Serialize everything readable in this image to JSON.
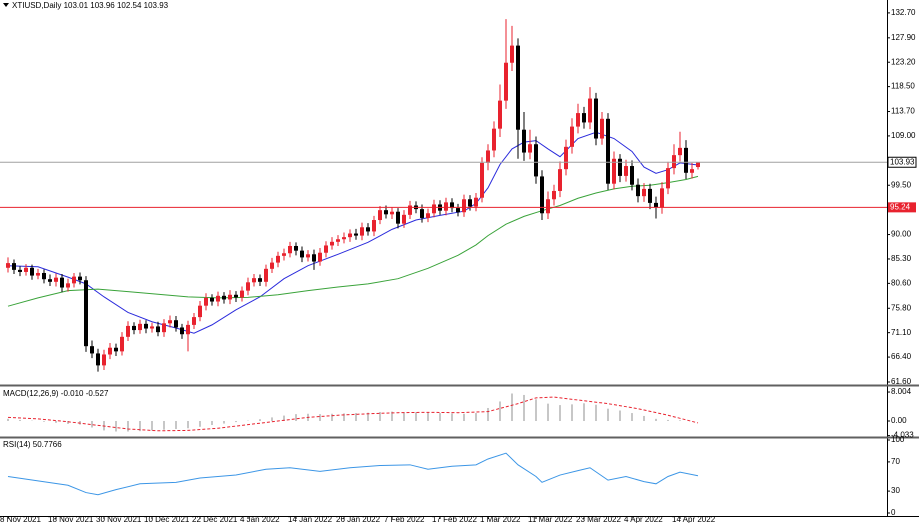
{
  "chart_data": [
    {
      "type": "candlestick",
      "title": "XTIUSD,Daily  103.01 103.96 102.54 103.93",
      "up_color": "#e8222e",
      "down_color": "#000000",
      "open": [
        83.6,
        84.5,
        83.2,
        82.8,
        83.6,
        82.1,
        82.6,
        81.4,
        80.9,
        81.7,
        79.8,
        80.6,
        81.9,
        81.2,
        68.5,
        67.1,
        64.8,
        66.9,
        68.2,
        67.5,
        70.3,
        72.4,
        71.6,
        72.8,
        71.9,
        72.3,
        71.2,
        72.9,
        73.5,
        72.1,
        70.8,
        72.6,
        74.1,
        76.3,
        77.8,
        77.1,
        78.2,
        77.5,
        78.4,
        77.9,
        79.2,
        80.8,
        81.6,
        80.9,
        83.4,
        84.6,
        85.9,
        86.4,
        87.8,
        86.9,
        85.6,
        86.2,
        84.8,
        86.5,
        87.9,
        88.6,
        89.1,
        89.5,
        90.2,
        89.8,
        91.4,
        90.6,
        92.8,
        94.7,
        93.9,
        94.4,
        92.1,
        93.8,
        95.6,
        94.9,
        93.2,
        94.1,
        95.8,
        94.6,
        96.2,
        95.1,
        94.3,
        96.8,
        95.4,
        97.1,
        103.8,
        106.2,
        110.4,
        115.8,
        123.1,
        126.4,
        110.2,
        105.8,
        107.4,
        101.2,
        94.1,
        96.8,
        98.4,
        102.6,
        106.9,
        110.8,
        113.4,
        111.6,
        116.2,
        108.5,
        112.3,
        99.8,
        104.6,
        101.3,
        103.2,
        99.6,
        97.4,
        98.8,
        96.1,
        95.2,
        98.9,
        102.8,
        105.3,
        106.7,
        101.9,
        103.01
      ],
      "high": [
        85.6,
        85.2,
        83.9,
        84.3,
        84.2,
        83.4,
        83.3,
        82.3,
        82.5,
        82.4,
        81.5,
        82.6,
        82.7,
        82.0,
        69.6,
        68.0,
        67.8,
        69.1,
        69.0,
        71.2,
        73.3,
        73.1,
        73.6,
        73.5,
        73.0,
        73.2,
        73.7,
        74.4,
        74.3,
        72.8,
        73.4,
        74.9,
        77.2,
        78.7,
        78.5,
        79.0,
        78.9,
        79.3,
        79.1,
        80.0,
        81.7,
        82.4,
        82.3,
        84.2,
        85.5,
        86.7,
        87.3,
        88.6,
        88.5,
        87.7,
        87.0,
        87.1,
        87.4,
        88.7,
        89.5,
        89.9,
        90.4,
        91.0,
        91.1,
        92.3,
        92.2,
        93.6,
        95.5,
        95.6,
        95.3,
        95.1,
        94.7,
        96.5,
        96.4,
        95.8,
        95.0,
        96.7,
        96.6,
        97.1,
        97.0,
        95.9,
        97.7,
        97.6,
        98.0,
        104.9,
        107.4,
        111.8,
        118.9,
        131.5,
        130.2,
        127.8,
        113.6,
        110.2,
        108.9,
        102.4,
        98.3,
        99.6,
        104.1,
        108.3,
        112.4,
        115.2,
        114.6,
        118.4,
        117.3,
        113.6,
        113.4,
        106.0,
        105.5,
        104.4,
        104.3,
        100.8,
        99.9,
        99.8,
        97.3,
        100.1,
        104.0,
        107.4,
        109.8,
        108.2,
        103.8,
        103.96
      ],
      "low": [
        82.7,
        82.4,
        82.0,
        82.1,
        81.3,
        81.4,
        80.6,
        80.1,
        80.0,
        78.9,
        79.0,
        79.8,
        80.4,
        67.4,
        66.2,
        63.6,
        63.9,
        66.0,
        66.6,
        66.7,
        69.5,
        70.8,
        70.9,
        71.0,
        71.1,
        70.4,
        70.3,
        72.1,
        71.3,
        69.9,
        67.5,
        71.8,
        73.3,
        75.4,
        76.3,
        76.2,
        76.7,
        76.6,
        77.0,
        77.1,
        78.3,
        80.0,
        80.1,
        80.0,
        82.6,
        83.7,
        85.0,
        85.6,
        86.0,
        84.7,
        84.8,
        83.2,
        84.0,
        85.6,
        87.1,
        87.8,
        88.3,
        88.6,
        89.0,
        88.9,
        89.8,
        89.7,
        92.0,
        93.1,
        93.0,
        91.2,
        91.3,
        93.0,
        94.1,
        92.3,
        92.4,
        93.3,
        93.8,
        93.7,
        94.3,
        93.5,
        93.4,
        94.6,
        94.5,
        96.2,
        102.4,
        104.9,
        108.8,
        114.2,
        121.5,
        104.6,
        104.2,
        104.5,
        99.8,
        92.8,
        93.0,
        95.6,
        97.2,
        101.4,
        105.6,
        109.5,
        110.4,
        110.3,
        107.2,
        107.3,
        98.6,
        98.7,
        100.1,
        100.2,
        98.5,
        96.2,
        96.3,
        94.9,
        93.1,
        94.0,
        97.8,
        101.6,
        104.1,
        100.7,
        100.8,
        102.54
      ],
      "close": [
        84.5,
        83.2,
        82.8,
        83.6,
        82.1,
        82.6,
        81.4,
        80.9,
        81.7,
        79.8,
        80.6,
        81.9,
        81.2,
        68.5,
        67.1,
        64.8,
        66.9,
        68.2,
        67.5,
        70.3,
        72.4,
        71.6,
        72.8,
        71.9,
        72.3,
        71.2,
        72.9,
        73.5,
        72.1,
        70.8,
        72.6,
        74.1,
        76.3,
        77.8,
        77.1,
        78.2,
        77.5,
        78.4,
        77.9,
        79.2,
        80.8,
        81.6,
        80.9,
        83.4,
        84.6,
        85.9,
        86.4,
        87.8,
        86.9,
        85.6,
        86.2,
        84.8,
        86.5,
        87.9,
        88.6,
        89.1,
        89.5,
        90.2,
        89.8,
        91.4,
        90.6,
        92.8,
        94.7,
        93.9,
        94.4,
        92.1,
        93.8,
        95.6,
        94.9,
        93.2,
        94.1,
        95.8,
        94.6,
        96.2,
        95.1,
        94.3,
        96.8,
        95.4,
        97.1,
        103.8,
        106.2,
        110.4,
        115.8,
        123.1,
        126.4,
        110.2,
        105.8,
        107.4,
        101.2,
        94.1,
        96.8,
        98.4,
        102.6,
        106.9,
        110.8,
        113.4,
        111.6,
        116.2,
        108.5,
        112.3,
        99.8,
        104.6,
        101.3,
        103.2,
        99.6,
        97.4,
        98.8,
        96.1,
        95.2,
        98.9,
        102.8,
        105.3,
        106.7,
        101.9,
        102.6,
        103.93
      ],
      "lines": [
        {
          "color": "#2b2bdc",
          "x": [
            0,
            5,
            10,
            13,
            16,
            20,
            24,
            28,
            31,
            34,
            38,
            42,
            46,
            50,
            55,
            60,
            64,
            68,
            72,
            76,
            78,
            80,
            82,
            84,
            86,
            88,
            90,
            92,
            95,
            98,
            101,
            104,
            106,
            108,
            110,
            112,
            115
          ],
          "values": [
            84.0,
            83.8,
            81.8,
            80.5,
            78.0,
            75.0,
            73.2,
            72.0,
            71.0,
            72.6,
            75.5,
            78.0,
            81.5,
            84.0,
            86.2,
            88.5,
            91.0,
            92.8,
            93.7,
            94.5,
            96.0,
            99.0,
            103.5,
            106.5,
            107.8,
            108.1,
            106.5,
            105.0,
            108.5,
            109.7,
            108.5,
            106.0,
            103.0,
            101.8,
            102.5,
            103.8,
            103.4
          ]
        },
        {
          "color": "#3aa33a",
          "x": [
            0,
            5,
            10,
            15,
            20,
            25,
            30,
            35,
            40,
            45,
            50,
            55,
            60,
            65,
            70,
            75,
            78,
            80,
            83,
            86,
            89,
            92,
            95,
            98,
            101,
            104,
            107,
            110,
            113,
            115
          ],
          "values": [
            76.2,
            77.8,
            79.2,
            79.5,
            79.0,
            78.5,
            78.0,
            77.8,
            77.9,
            78.4,
            79.2,
            79.9,
            80.5,
            81.5,
            83.5,
            86.0,
            88.0,
            89.8,
            92.0,
            93.5,
            94.6,
            95.6,
            97.0,
            98.0,
            98.8,
            99.3,
            99.5,
            100.0,
            100.6,
            101.2
          ]
        }
      ],
      "level": {
        "value": 95.24,
        "color": "#e8222e"
      },
      "current": {
        "value": 103.93,
        "color": "#a0a0a0"
      },
      "ylim": [
        61.02,
        134.8
      ],
      "yticks": [
        {
          "value": 132.7,
          "label": "132.70"
        },
        {
          "value": 127.9,
          "label": "127.90"
        },
        {
          "value": 123.2,
          "label": "123.20"
        },
        {
          "value": 118.5,
          "label": "118.50"
        },
        {
          "value": 113.7,
          "label": "113.70"
        },
        {
          "value": 109.0,
          "label": "109.00"
        },
        {
          "value": 99.5,
          "label": "99.50"
        },
        {
          "value": 90.0,
          "label": "90.00"
        },
        {
          "value": 85.3,
          "label": "85.30"
        },
        {
          "value": 80.6,
          "label": "80.60"
        },
        {
          "value": 75.8,
          "label": "75.80"
        },
        {
          "value": 71.1,
          "label": "71.10"
        },
        {
          "value": 66.4,
          "label": "66.40"
        },
        {
          "value": 61.6,
          "label": "61.60"
        }
      ],
      "xticks": [
        {
          "value": 0,
          "label": "8 Nov 2021"
        },
        {
          "value": 8,
          "label": "18 Nov 2021"
        },
        {
          "value": 16,
          "label": "30 Nov 2021"
        },
        {
          "value": 24,
          "label": "10 Dec 2021"
        },
        {
          "value": 32,
          "label": "22 Dec 2021"
        },
        {
          "value": 40,
          "label": "4 Jan 2022"
        },
        {
          "value": 48,
          "label": "14 Jan 2022"
        },
        {
          "value": 56,
          "label": "26 Jan 2022"
        },
        {
          "value": 64,
          "label": "7 Feb 2022"
        },
        {
          "value": 72,
          "label": "17 Feb 2022"
        },
        {
          "value": 80,
          "label": "1 Mar 2022"
        },
        {
          "value": 88,
          "label": "11 Mar 2022"
        },
        {
          "value": 96,
          "label": "23 Mar 2022"
        },
        {
          "value": 104,
          "label": "4 Apr 2022"
        },
        {
          "value": 112,
          "label": "14 Apr 2022"
        }
      ]
    },
    {
      "type": "macd",
      "title": "MACD(12,26,9) -0.010 -0.527",
      "x": [
        0,
        2,
        4,
        6,
        8,
        10,
        12,
        14,
        16,
        18,
        20,
        22,
        24,
        26,
        28,
        30,
        32,
        34,
        36,
        38,
        40,
        42,
        44,
        46,
        48,
        50,
        52,
        54,
        56,
        58,
        60,
        62,
        64,
        66,
        68,
        70,
        72,
        74,
        76,
        78,
        80,
        82,
        84,
        86,
        88,
        90,
        92,
        94,
        96,
        98,
        100,
        102,
        104,
        106,
        108,
        110,
        112,
        114
      ],
      "values": [
        0.6,
        0.3,
        0.1,
        -0.2,
        -0.5,
        -0.8,
        -1.0,
        -1.8,
        -2.6,
        -2.9,
        -2.9,
        -2.8,
        -2.6,
        -2.4,
        -2.2,
        -2.0,
        -1.6,
        -1.1,
        -0.7,
        -0.3,
        0.1,
        0.5,
        1.0,
        1.5,
        1.9,
        2.0,
        1.9,
        2.0,
        2.1,
        2.2,
        2.3,
        2.5,
        2.6,
        2.4,
        2.4,
        2.3,
        2.2,
        2.1,
        2.0,
        2.2,
        3.6,
        5.4,
        7.6,
        7.2,
        6.0,
        4.8,
        4.4,
        4.6,
        4.9,
        4.5,
        3.4,
        2.9,
        2.2,
        1.4,
        0.6,
        0.3,
        0.2,
        -0.01
      ],
      "color": "#b4b4b4",
      "signal_x": [
        0,
        5,
        10,
        15,
        20,
        25,
        30,
        35,
        40,
        45,
        50,
        55,
        60,
        65,
        70,
        75,
        80,
        85,
        88,
        91,
        95,
        100,
        105,
        110,
        115
      ],
      "signal": [
        1.0,
        0.6,
        -0.2,
        -1.2,
        -2.2,
        -2.7,
        -2.6,
        -2.0,
        -1.0,
        0.0,
        1.0,
        1.6,
        2.0,
        2.3,
        2.4,
        2.3,
        2.6,
        4.8,
        6.4,
        6.6,
        5.8,
        4.8,
        3.4,
        1.6,
        -0.53
      ],
      "signal_color": "#e8222e",
      "ylim": [
        -4.14,
        9.12
      ],
      "yticks": [
        8.004,
        {
          "value": 0,
          "label": "0.00"
        },
        -4.033
      ]
    },
    {
      "type": "line",
      "title": "RSI(14) 50.7766",
      "color": "#3c96e6",
      "x": [
        0,
        5,
        10,
        13,
        15,
        18,
        22,
        28,
        32,
        38,
        43,
        47,
        52,
        57,
        62,
        67,
        70,
        74,
        78,
        80,
        83,
        85,
        88,
        89,
        92,
        95,
        97,
        100,
        103,
        106,
        108,
        110,
        112,
        115
      ],
      "values": [
        50,
        44,
        38,
        28,
        25,
        32,
        40,
        42,
        48,
        52,
        60,
        62,
        57,
        62,
        65,
        66,
        60,
        64,
        66,
        74,
        82,
        66,
        50,
        42,
        52,
        58,
        62,
        45,
        50,
        43,
        40,
        50,
        56,
        51
      ],
      "ylim": [
        0,
        100
      ],
      "yticks": [
        100,
        70,
        30,
        0
      ]
    }
  ]
}
